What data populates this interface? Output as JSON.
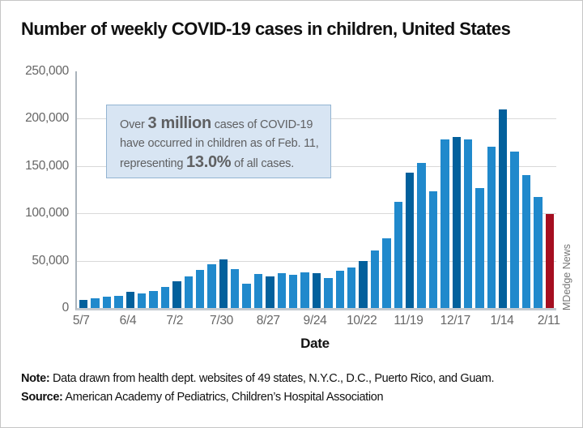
{
  "title": "Number of weekly COVID-19 cases in children, United States",
  "watermark": "MDedge News",
  "note": {
    "label": "Note:",
    "text": " Data drawn from health dept. websites of 49 states, N.Y.C., D.C., Puerto Rico, and Guam."
  },
  "source": {
    "label": "Source:",
    "text": " American Academy of Pediatrics, Children’s Hospital Association"
  },
  "callout": {
    "lines": [
      [
        {
          "text": "Over ",
          "strong": false
        },
        {
          "text": "3 million",
          "strong": true
        },
        {
          "text": " cases of COVID-19",
          "strong": false
        }
      ],
      [
        {
          "text": "have occurred in children as of Feb. 11,",
          "strong": false
        }
      ],
      [
        {
          "text": "representing ",
          "strong": false
        },
        {
          "text": "13.0%",
          "strong": true
        },
        {
          "text": " of all cases.",
          "strong": false
        }
      ]
    ]
  },
  "colors": {
    "bar_default": "#2089CC",
    "bar_labeled": "#02609C",
    "bar_last": "#A50E20",
    "gridline": "#d9d9d9",
    "axis_text": "#666666",
    "callout_bg": "#d8e5f3",
    "callout_border": "#93b4d2"
  },
  "chart_data": {
    "type": "bar",
    "title": "Number of weekly COVID-19 cases in children, United States",
    "xlabel": "Date",
    "ylabel": "",
    "ylim": [
      0,
      250000
    ],
    "grid": "horizontal-only",
    "legend": "none",
    "x": [
      "5/7",
      "5/14",
      "5/21",
      "5/28",
      "6/4",
      "6/11",
      "6/18",
      "6/25",
      "7/2",
      "7/9",
      "7/16",
      "7/23",
      "7/30",
      "8/6",
      "8/13",
      "8/20",
      "8/27",
      "9/3",
      "9/10",
      "9/17",
      "9/24",
      "10/1",
      "10/8",
      "10/15",
      "10/22",
      "10/29",
      "11/5",
      "11/12",
      "11/19",
      "11/26",
      "12/3",
      "12/10",
      "12/17",
      "12/24",
      "12/31",
      "1/7",
      "1/14",
      "1/21",
      "1/28",
      "2/4",
      "2/11"
    ],
    "values": [
      9000,
      10000,
      12000,
      13000,
      17000,
      15000,
      18000,
      22000,
      28000,
      33000,
      40000,
      46000,
      51000,
      41000,
      26000,
      36000,
      33000,
      37000,
      35000,
      38000,
      37000,
      32000,
      39000,
      43000,
      50000,
      61000,
      74000,
      112000,
      143000,
      153000,
      123000,
      178000,
      181000,
      178000,
      127000,
      170000,
      210000,
      165000,
      140000,
      117000,
      99000
    ],
    "xtick_labels": [
      "5/7",
      "6/4",
      "7/2",
      "7/30",
      "8/27",
      "9/24",
      "10/22",
      "11/19",
      "12/17",
      "1/14",
      "2/11"
    ],
    "xtick_every": 4,
    "ytick_values": [
      250000,
      200000,
      150000,
      100000,
      50000,
      0
    ],
    "ytick_labels": [
      "250,000",
      "200,000",
      "150,000",
      "100,000",
      "50,000",
      "0"
    ],
    "highlight_rule": "labeled weeks dark blue, final week dark red"
  }
}
